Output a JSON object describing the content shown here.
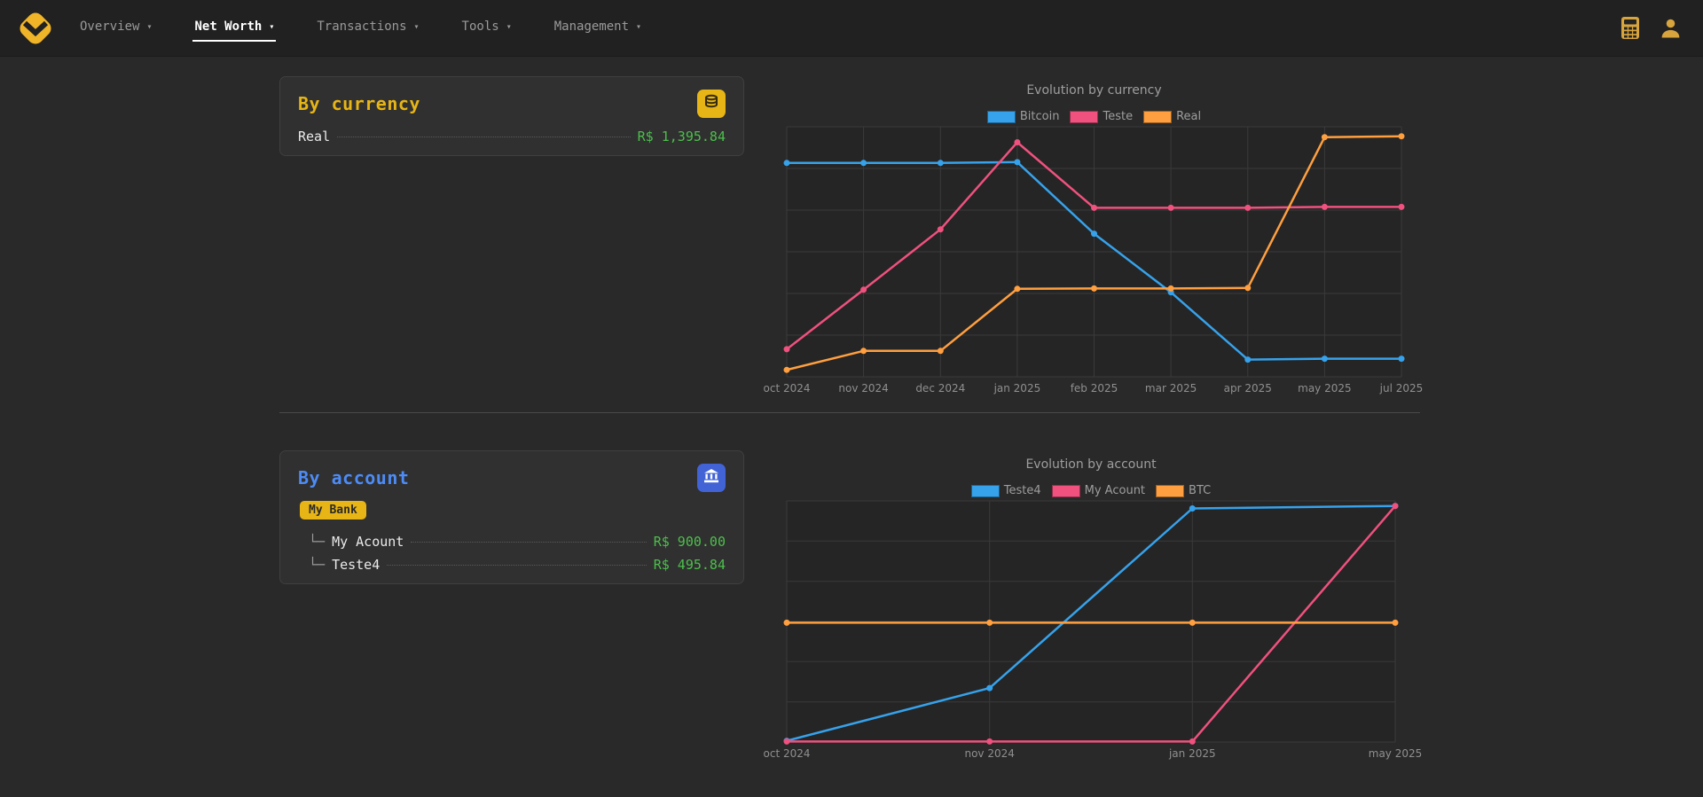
{
  "navbar": {
    "items": [
      {
        "label": "Overview",
        "active": false
      },
      {
        "label": "Net Worth",
        "active": true
      },
      {
        "label": "Transactions",
        "active": false
      },
      {
        "label": "Tools",
        "active": false
      },
      {
        "label": "Management",
        "active": false
      }
    ]
  },
  "currency_card": {
    "title": "By currency",
    "icon": "coins-icon",
    "accent": "#e7b515",
    "rows": [
      {
        "label": "Real",
        "value": "R$ 1,395.84"
      }
    ]
  },
  "account_card": {
    "title": "By account",
    "icon": "bank-icon",
    "accent": "#4d8bf5",
    "bank_badge": "My Bank",
    "rows": [
      {
        "prefix": "└─",
        "label": "My Acount",
        "value": "R$ 900.00"
      },
      {
        "prefix": "└─",
        "label": "Teste4",
        "value": "R$ 495.84"
      }
    ]
  },
  "colors": {
    "value_green": "#4cbf4c",
    "accent_yellow": "#e7b515",
    "accent_blue": "#4263d6",
    "series_blue": "#36a2eb",
    "series_pink": "#f0517e",
    "series_orange": "#ff9f40"
  },
  "chart_data": [
    {
      "type": "line",
      "title": "Evolution by currency",
      "x": [
        "oct 2024",
        "nov 2024",
        "dec 2024",
        "jan 2025",
        "feb 2025",
        "mar 2025",
        "apr 2025",
        "may 2025",
        "jul 2025"
      ],
      "ylim": [
        0,
        1450
      ],
      "grid": true,
      "legend_position": "top",
      "series": [
        {
          "name": "Bitcoin",
          "color": "#36a2eb",
          "values": [
            1240,
            1240,
            1240,
            1245,
            830,
            490,
            100,
            105,
            105
          ]
        },
        {
          "name": "Teste",
          "color": "#f0517e",
          "values": [
            160,
            505,
            855,
            1360,
            980,
            980,
            980,
            985,
            985
          ]
        },
        {
          "name": "Real",
          "color": "#ff9f40",
          "values": [
            40,
            150,
            150,
            510,
            512,
            512,
            515,
            1390,
            1395
          ]
        }
      ]
    },
    {
      "type": "line",
      "title": "Evolution by account",
      "x": [
        "oct 2024",
        "nov 2024",
        "jan 2025",
        "may 2025"
      ],
      "ylim": [
        0,
        960
      ],
      "grid": true,
      "legend_position": "top",
      "series": [
        {
          "name": "Teste4",
          "color": "#36a2eb",
          "values": [
            5,
            215,
            930,
            940
          ]
        },
        {
          "name": "My Acount",
          "color": "#f0517e",
          "values": [
            2,
            2,
            2,
            940
          ]
        },
        {
          "name": "BTC",
          "color": "#ff9f40",
          "values": [
            475,
            475,
            475,
            475
          ]
        }
      ]
    }
  ]
}
